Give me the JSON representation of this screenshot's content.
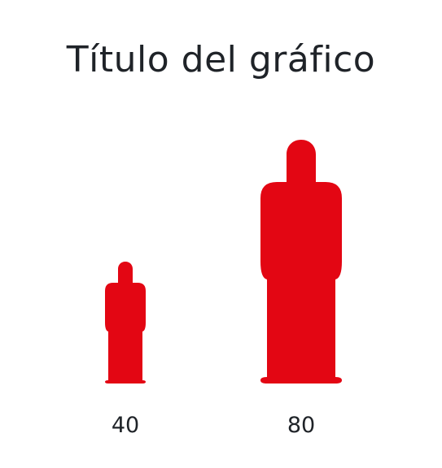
{
  "chart_data": {
    "type": "bar",
    "subtype": "pictograph",
    "title": "Título del gráfico",
    "categories": [
      "",
      ""
    ],
    "values": [
      40,
      80
    ],
    "value_labels": [
      "40",
      "80"
    ],
    "icon": "person-icon",
    "color": "#e30613",
    "ylim": [
      0,
      80
    ],
    "grid": false,
    "legend": "none"
  }
}
